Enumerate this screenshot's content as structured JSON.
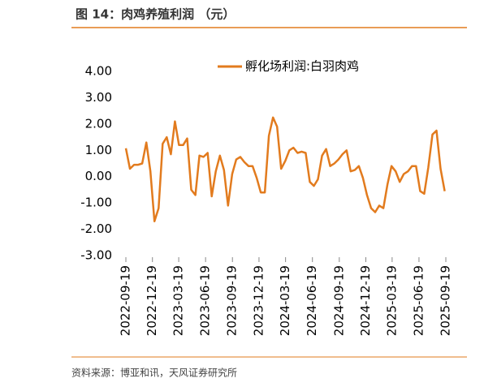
{
  "chart_data": {
    "type": "line",
    "title": "图 14：肉鸡养殖利润 （元）",
    "source": "资料来源：博亚和讯，天风证券研究所",
    "x": [
      "2022-09-19",
      "2022-10-03",
      "2022-10-17",
      "2022-10-31",
      "2022-11-14",
      "2022-11-28",
      "2022-12-12",
      "2022-12-26",
      "2023-01-09",
      "2023-01-23",
      "2023-02-06",
      "2023-02-20",
      "2023-03-06",
      "2023-03-20",
      "2023-04-03",
      "2023-04-17",
      "2023-05-01",
      "2023-05-15",
      "2023-05-29",
      "2023-06-12",
      "2023-06-26",
      "2023-07-10",
      "2023-07-24",
      "2023-08-07",
      "2023-08-21",
      "2023-09-04",
      "2023-09-18",
      "2023-10-02",
      "2023-10-16",
      "2023-10-30",
      "2023-11-13",
      "2023-11-27",
      "2023-12-11",
      "2023-12-25",
      "2024-01-08",
      "2024-01-22",
      "2024-02-05",
      "2024-02-19",
      "2024-03-04",
      "2024-03-18",
      "2024-04-01",
      "2024-04-15",
      "2024-04-29",
      "2024-05-13",
      "2024-05-27",
      "2024-06-10",
      "2024-06-24",
      "2024-07-08",
      "2024-07-22",
      "2024-08-05",
      "2024-08-19",
      "2024-09-02",
      "2024-09-16",
      "2024-09-30",
      "2024-10-14",
      "2024-10-28",
      "2024-11-11",
      "2024-11-25",
      "2024-12-09",
      "2024-12-23",
      "2025-01-06",
      "2025-01-20",
      "2025-02-03",
      "2025-02-17",
      "2025-03-03",
      "2025-03-17",
      "2025-03-31",
      "2025-04-14",
      "2025-04-28",
      "2025-05-12",
      "2025-05-26",
      "2025-06-09",
      "2025-06-23",
      "2025-07-07",
      "2025-07-21",
      "2025-08-04",
      "2025-08-18",
      "2025-09-01",
      "2025-09-15"
    ],
    "series": [
      {
        "name": "孵化场利润:白羽肉鸡",
        "color": "#e27b1e",
        "values": [
          1.08,
          0.3,
          0.45,
          0.45,
          0.5,
          1.3,
          0.2,
          -1.7,
          -1.2,
          1.25,
          1.5,
          0.85,
          2.1,
          1.2,
          1.2,
          1.45,
          -0.5,
          -0.7,
          0.8,
          0.75,
          0.9,
          -0.75,
          0.2,
          0.8,
          0.25,
          -1.1,
          0.1,
          0.65,
          0.75,
          0.55,
          0.4,
          0.4,
          -0.05,
          -0.6,
          -0.6,
          1.55,
          2.25,
          1.9,
          0.3,
          0.6,
          1.0,
          1.1,
          0.9,
          0.95,
          0.9,
          -0.2,
          -0.35,
          -0.1,
          0.8,
          1.05,
          0.4,
          0.5,
          0.65,
          0.85,
          1.0,
          0.2,
          0.25,
          0.4,
          -0.05,
          -0.7,
          -1.2,
          -1.35,
          -1.1,
          -1.2,
          -0.3,
          0.4,
          0.2,
          -0.2,
          0.1,
          0.2,
          0.4,
          0.4,
          -0.55,
          -0.65,
          0.35,
          1.6,
          1.75,
          0.3,
          -0.55
        ]
      }
    ],
    "xlim": [
      "2022-09-19",
      "2025-09-19"
    ],
    "xticks": [
      "2022-09-19",
      "2022-12-19",
      "2023-03-19",
      "2023-06-19",
      "2023-09-19",
      "2023-12-19",
      "2024-03-19",
      "2024-06-19",
      "2024-09-19",
      "2024-12-19",
      "2025-03-19",
      "2025-06-19",
      "2025-09-19"
    ],
    "ylim": [
      -3,
      4
    ],
    "yticks": [
      {
        "value": 4,
        "label": "4.00"
      },
      {
        "value": 3,
        "label": "3.00"
      },
      {
        "value": 2,
        "label": "2.00"
      },
      {
        "value": 1,
        "label": "1.00"
      },
      {
        "value": 0,
        "label": "0.00"
      },
      {
        "value": -1,
        "label": "-1.00"
      },
      {
        "value": -2,
        "label": "-2.00"
      },
      {
        "value": -3,
        "label": "-3.00"
      }
    ],
    "legend": "top"
  }
}
